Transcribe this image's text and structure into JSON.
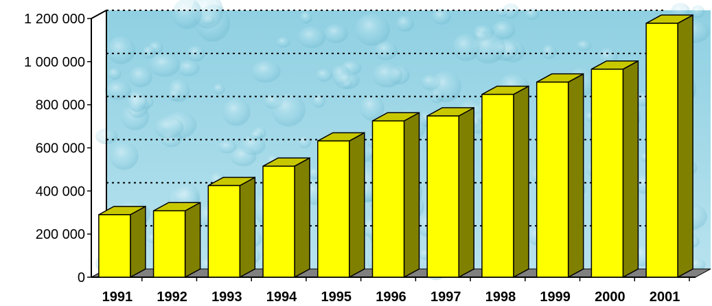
{
  "chart_data": {
    "type": "bar",
    "style": "3d-column",
    "categories": [
      "1991",
      "1992",
      "1993",
      "1994",
      "1995",
      "1996",
      "1997",
      "1998",
      "1999",
      "2000",
      "2001"
    ],
    "values": [
      290000,
      308000,
      425000,
      515000,
      632000,
      725000,
      748000,
      848000,
      905000,
      965000,
      1178000
    ],
    "ylim": [
      0,
      1200000
    ],
    "yticks": [
      0,
      200000,
      400000,
      600000,
      800000,
      1000000,
      1200000
    ],
    "ytick_labels": [
      "0",
      "200 000",
      "400 000",
      "600 000",
      "800 000",
      "1 000 000",
      "1 200 000"
    ],
    "grid": "dotted-horizontal",
    "title": "",
    "xlabel": "",
    "ylabel": "",
    "colors": {
      "bar_front": "#ffff00",
      "bar_top": "#c8c800",
      "bar_side": "#808000",
      "floor": "#808080",
      "background": "#9fd6e6"
    }
  }
}
